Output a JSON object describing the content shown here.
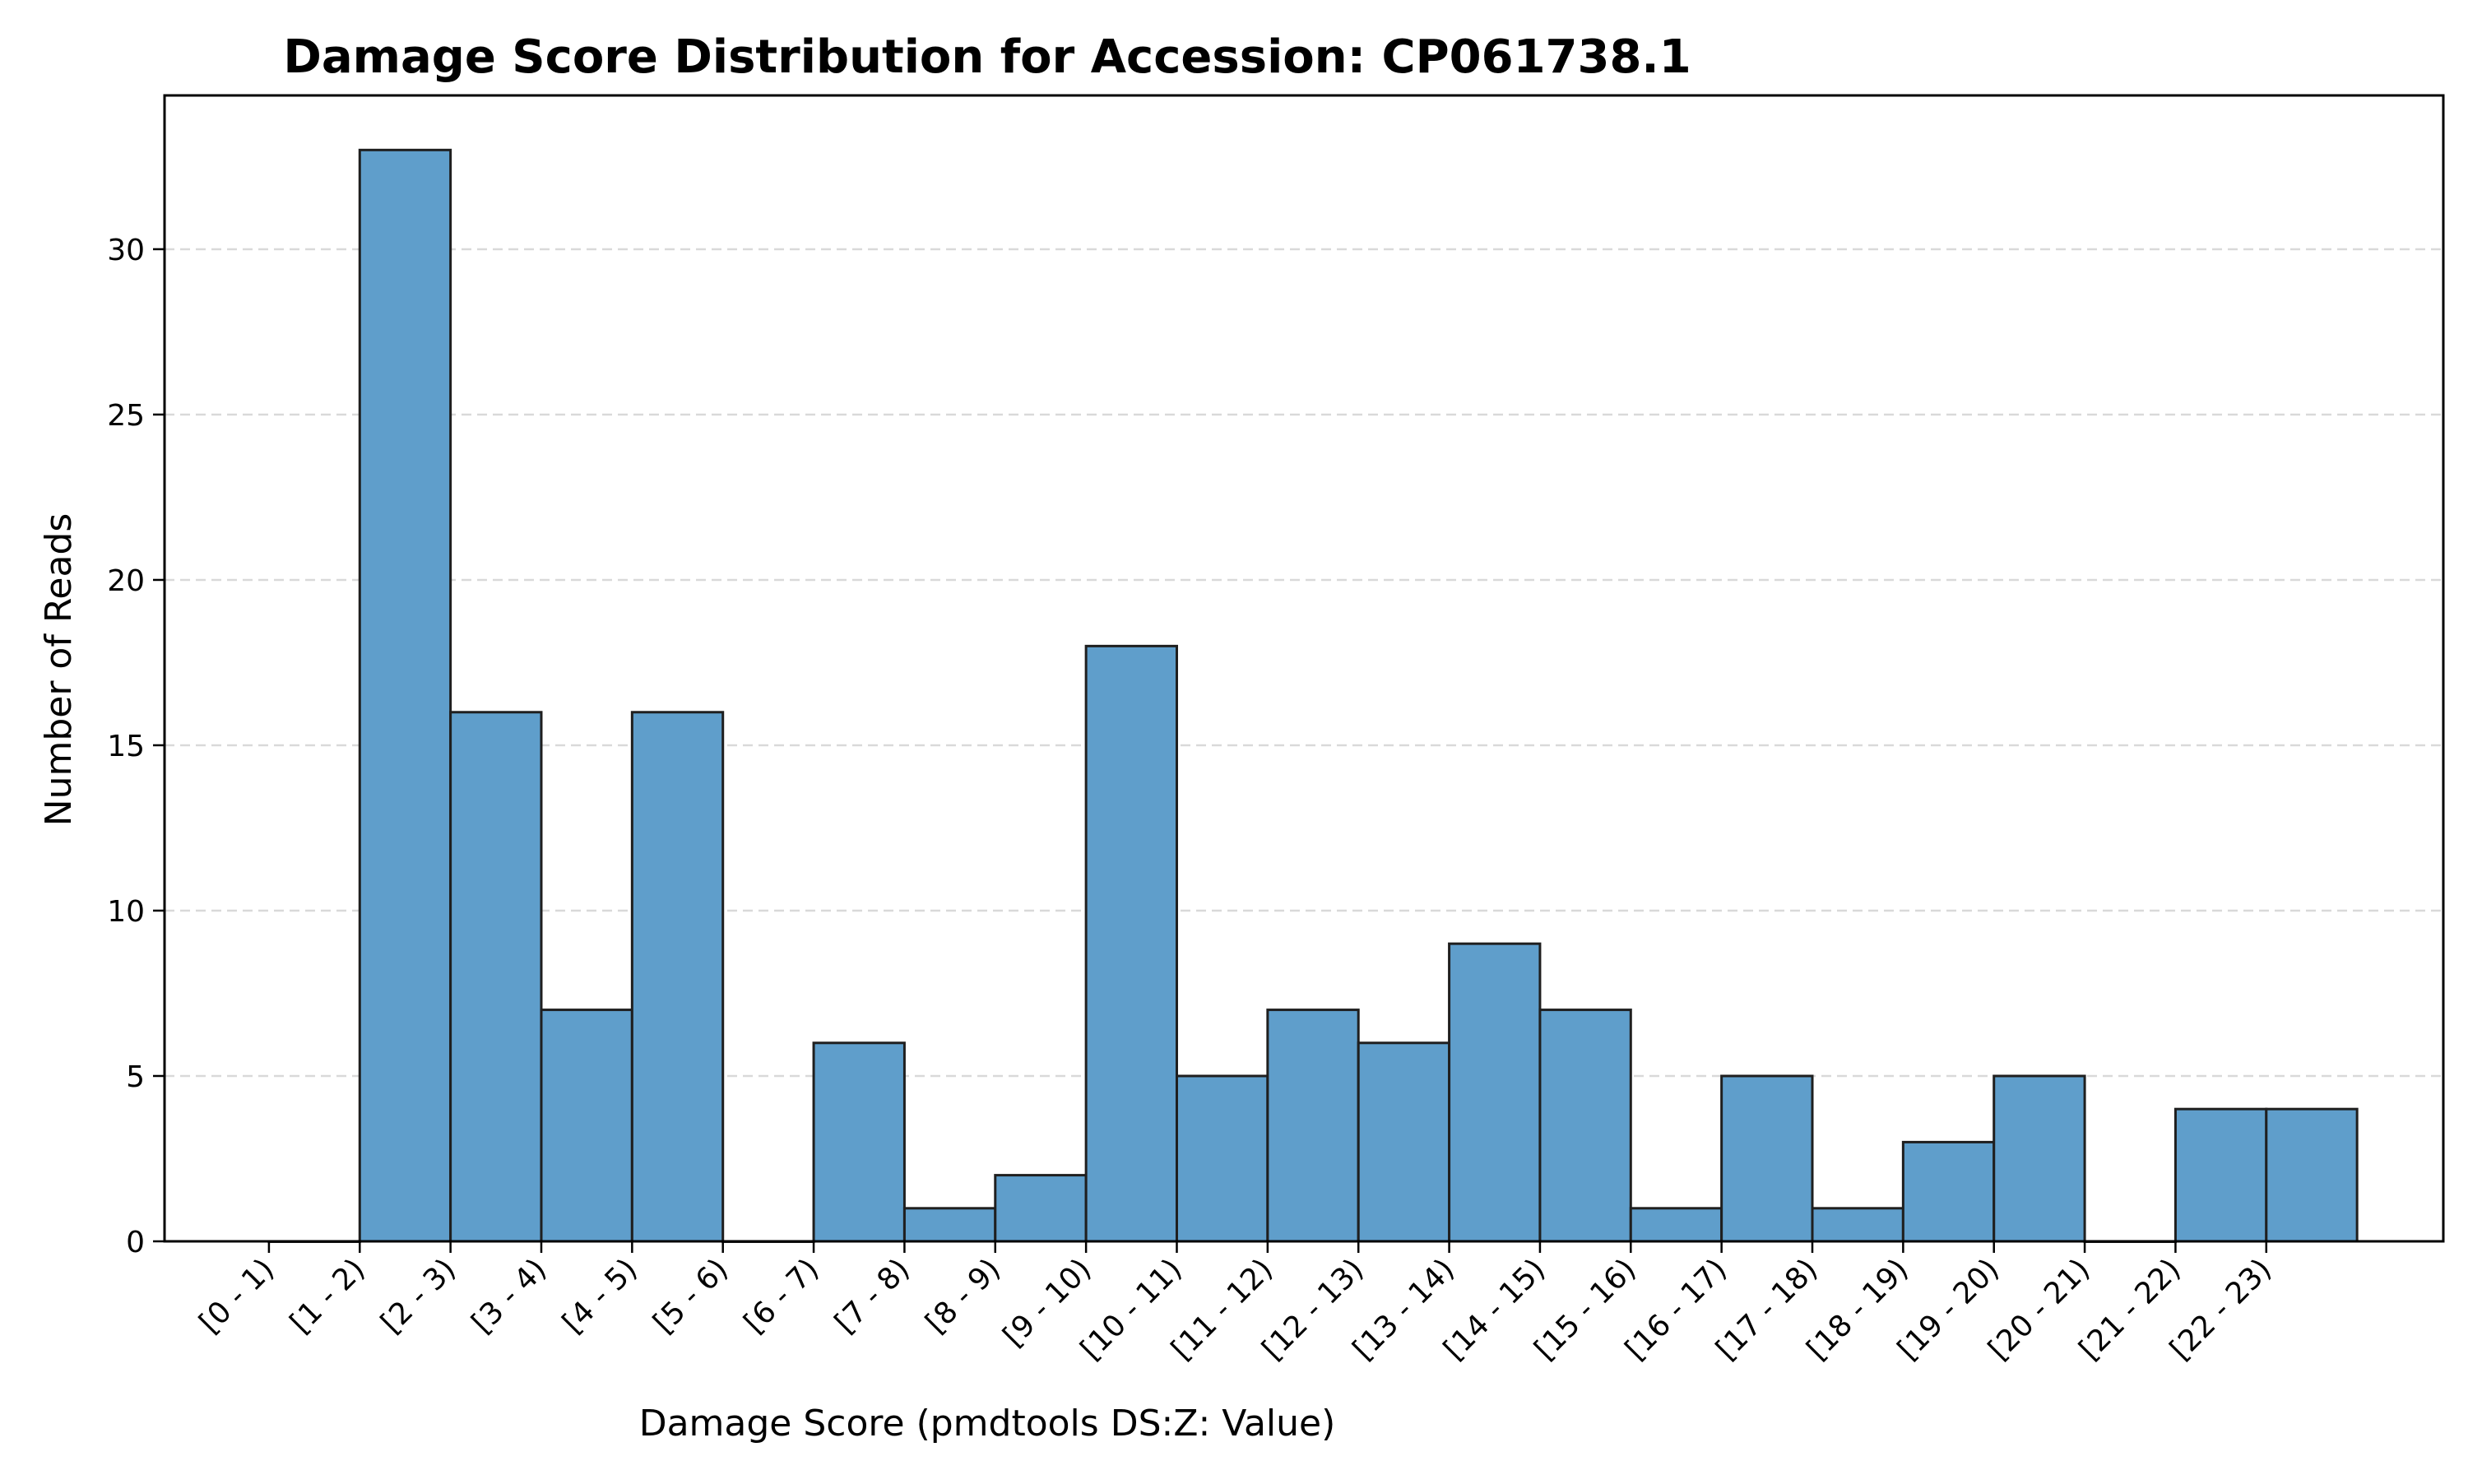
{
  "chart_data": {
    "type": "bar",
    "title": "Damage Score Distribution for Accession: CP061738.1",
    "xlabel": "Damage Score (pmdtools DS:Z: Value)",
    "ylabel": "Number of Reads",
    "categories": [
      "[0 - 1)",
      "[1 - 2)",
      "[2 - 3)",
      "[3 - 4)",
      "[4 - 5)",
      "[5 - 6)",
      "[6 - 7)",
      "[7 - 8)",
      "[8 - 9)",
      "[9 - 10)",
      "[10 - 11)",
      "[11 - 12)",
      "[12 - 13)",
      "[13 - 14)",
      "[14 - 15)",
      "[15 - 16)",
      "[16 - 17)",
      "[17 - 18)",
      "[18 - 19)",
      "[19 - 20)",
      "[20 - 21)",
      "[21 - 22)",
      "[22 - 23)"
    ],
    "values": [
      0,
      33,
      16,
      7,
      16,
      0,
      6,
      1,
      2,
      18,
      5,
      7,
      6,
      9,
      7,
      1,
      5,
      1,
      3,
      5,
      0,
      4,
      4
    ],
    "y_ticks": [
      "0",
      "5",
      "10",
      "15",
      "20",
      "25",
      "30"
    ],
    "ylim": [
      0,
      34.65
    ],
    "grid": "y-dashed",
    "bar_color": "#5f9ecb",
    "bar_edge_color": "#1f1f1f",
    "grid_color": "#d9d9d9"
  }
}
